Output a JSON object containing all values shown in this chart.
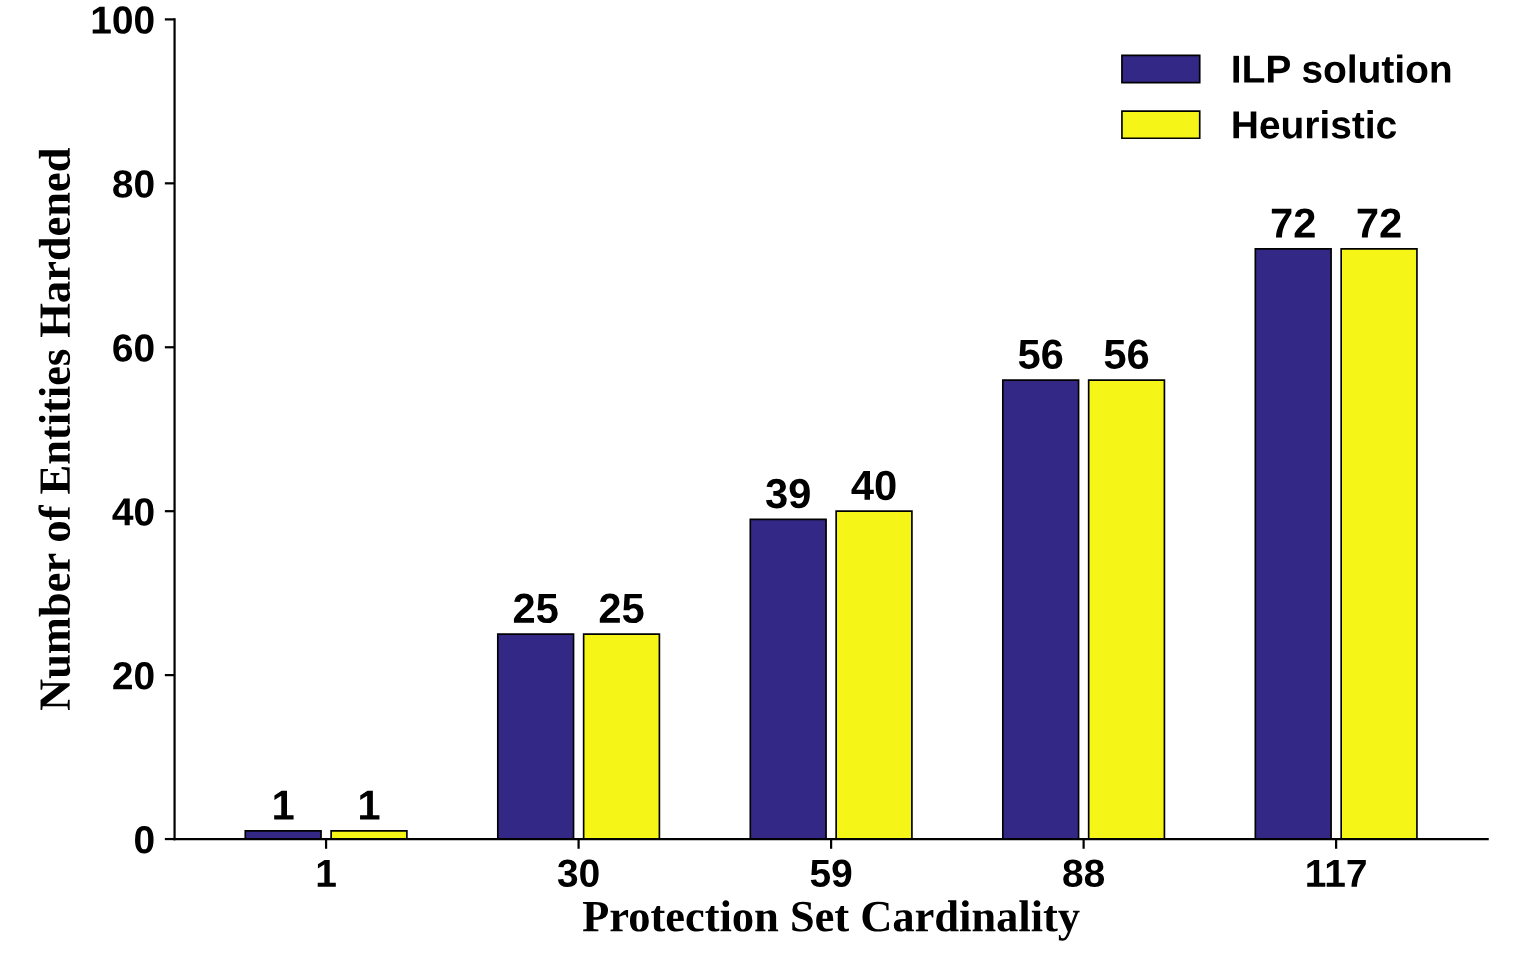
{
  "chart_data": {
    "type": "bar",
    "xlabel": "Protection Set Cardinality",
    "ylabel": "Number of Entities Hardened",
    "categories": [
      "1",
      "30",
      "59",
      "88",
      "117"
    ],
    "series": [
      {
        "name": "ILP solution",
        "color": "#332885",
        "values": [
          1,
          25,
          39,
          56,
          72
        ]
      },
      {
        "name": "Heuristic",
        "color": "#f5f517",
        "values": [
          1,
          25,
          40,
          56,
          72
        ]
      }
    ],
    "ylim": [
      0,
      100
    ],
    "yticks": [
      0,
      20,
      40,
      60,
      80,
      100
    ],
    "grid": false,
    "legend": "top right",
    "data_labels": true
  }
}
